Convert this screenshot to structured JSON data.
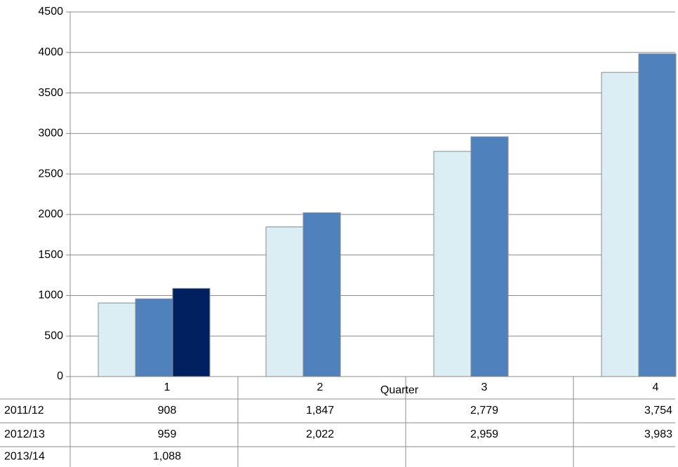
{
  "chart_data": {
    "type": "bar",
    "xlabel": "Quarter",
    "ylabel": "",
    "ylim": [
      0,
      4500
    ],
    "yticks": [
      0,
      500,
      1000,
      1500,
      2000,
      2500,
      3000,
      3500,
      4000,
      4500
    ],
    "categories": [
      "1",
      "2",
      "3",
      "4"
    ],
    "grid": true,
    "legend": "data-table-below",
    "series": [
      {
        "name": "2011/12",
        "color": "#daeef3",
        "values": [
          908,
          1847,
          2779,
          3754
        ],
        "labels": [
          "908",
          "1,847",
          "2,779",
          "3,754"
        ]
      },
      {
        "name": "2012/13",
        "color": "#4f81bd",
        "values": [
          959,
          2022,
          2959,
          3983
        ],
        "labels": [
          "959",
          "2,022",
          "2,959",
          "3,983"
        ]
      },
      {
        "name": "2013/14",
        "color": "#002060",
        "values": [
          1088,
          null,
          null,
          null
        ],
        "labels": [
          "1,088",
          "",
          "",
          ""
        ]
      }
    ]
  }
}
